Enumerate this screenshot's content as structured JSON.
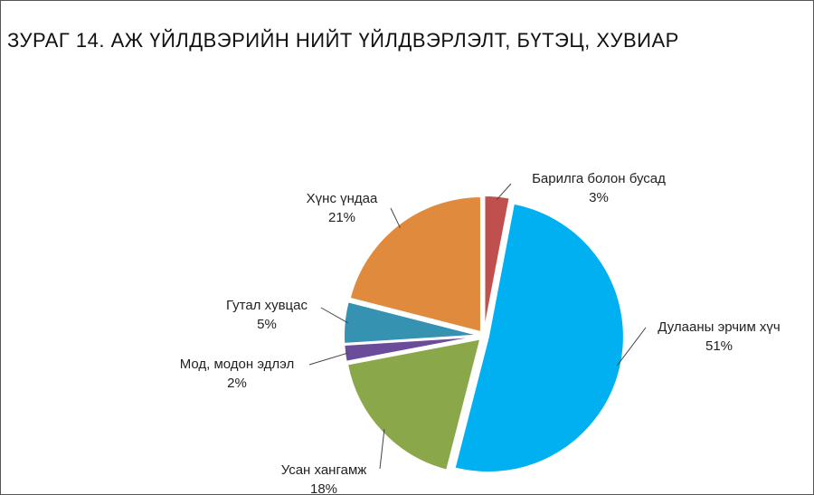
{
  "chart_data": {
    "type": "pie",
    "title": "ЗУРАГ 14. АЖ ҮЙЛДВЭРИЙН НИЙТ ҮЙЛДВЭРЛЭЛТ, БҮТЭЦ, ХУВИАР",
    "categories": [
      "Барилга болон бусад",
      "Дулааны эрчим хүч",
      "Усан хангамж",
      "Мод, модон эдлэл",
      "Гутал хувцас",
      "Хүнс үндаа"
    ],
    "values": [
      3,
      51,
      18,
      2,
      5,
      21
    ],
    "value_labels": [
      "3%",
      "51%",
      "18%",
      "2%",
      "5%",
      "21%"
    ],
    "colors": [
      "#c0504d",
      "#00b0f0",
      "#8aa84a",
      "#6b4c9a",
      "#3592b0",
      "#e08a3e"
    ]
  }
}
